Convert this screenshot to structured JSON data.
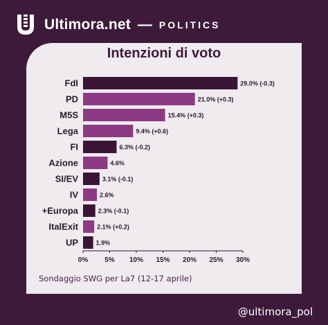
{
  "header": {
    "brand": "Ultimora.net",
    "dash": "—",
    "section": "POLITICS",
    "logo_icon": "ultimora-u-logo"
  },
  "source_note": "Sondaggio SWG per La7 (12-17 aprile)",
  "handle": "@ultimora_pol",
  "colors": {
    "background": "#3d1a3a",
    "card": "#efebef",
    "bar_dark": "#3a1636",
    "bar_light": "#8c3a84",
    "text": "#2a1a2a"
  },
  "chart_data": {
    "type": "bar",
    "orientation": "horizontal",
    "title": "Intenzioni di voto",
    "categories": [
      "FdI",
      "PD",
      "M5S",
      "Lega",
      "FI",
      "Azione",
      "SI/EV",
      "IV",
      "+Europa",
      "ItalExit",
      "UP"
    ],
    "values": [
      29.0,
      21.0,
      15.4,
      9.4,
      6.3,
      4.6,
      3.1,
      2.6,
      2.3,
      2.1,
      1.9
    ],
    "labels": [
      "29.0% (-0.3)",
      "21.0% (+0.3)",
      "15.4% (+0.3)",
      "9.4% (+0.6)",
      "6.3% (-0.2)",
      "4.6%",
      "3.1% (-0.1)",
      "2.6%",
      "2.3% (-0.1)",
      "2.1% (+0.2)",
      "1.9%"
    ],
    "bar_colors": [
      "#3a1636",
      "#8c3a84",
      "#8c3a84",
      "#8c3a84",
      "#3a1636",
      "#8c3a84",
      "#3a1636",
      "#8c3a84",
      "#3a1636",
      "#8c3a84",
      "#3a1636"
    ],
    "xlim": [
      0,
      30
    ],
    "xticks": [
      0,
      5,
      10,
      15,
      20,
      25,
      30
    ],
    "xtick_labels": [
      "0%",
      "5%",
      "10%",
      "15%",
      "20%",
      "25%",
      "30%"
    ],
    "xlabel": "",
    "ylabel": "",
    "grid": false,
    "legend": false
  }
}
